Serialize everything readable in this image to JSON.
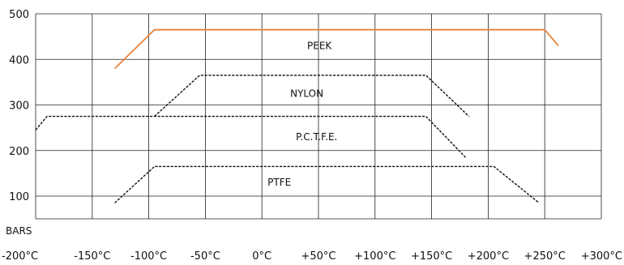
{
  "chart_data": {
    "type": "line",
    "title": "",
    "xlabel": "",
    "ylabel": "BARS",
    "xlim": [
      -200,
      300
    ],
    "ylim": [
      50,
      500
    ],
    "grid": true,
    "x_ticks": [
      -200,
      -150,
      -100,
      -50,
      0,
      50,
      100,
      150,
      200,
      250,
      300
    ],
    "x_tick_labels": [
      "-200°C",
      "-150°C",
      "-100°C",
      "-50°C",
      "0°C",
      "+50°C",
      "+100°C",
      "+150°C",
      "+200°C",
      "+250°C",
      "+300°C"
    ],
    "y_ticks": [
      100,
      200,
      300,
      400,
      500
    ],
    "y_tick_labels": [
      "100",
      "200",
      "300",
      "400",
      "500"
    ],
    "series": [
      {
        "name": "PEEK",
        "color": "#e8843c",
        "dash": "solid",
        "points": [
          [
            -130,
            380
          ],
          [
            -95,
            465
          ],
          [
            250,
            465
          ],
          [
            262,
            430
          ]
        ]
      },
      {
        "name": "NYLON",
        "color": "#111111",
        "dash": "dashed",
        "points": [
          [
            -95,
            275
          ],
          [
            -55,
            365
          ],
          [
            145,
            365
          ],
          [
            183,
            275
          ]
        ]
      },
      {
        "name": "P.C.T.F.E.",
        "color": "#111111",
        "dash": "dashed",
        "points": [
          [
            -200,
            245
          ],
          [
            -190,
            275
          ],
          [
            145,
            275
          ],
          [
            180,
            185
          ]
        ]
      },
      {
        "name": "PTFE",
        "color": "#111111",
        "dash": "dashed",
        "points": [
          [
            -130,
            85
          ],
          [
            -95,
            165
          ],
          [
            205,
            165
          ],
          [
            245,
            85
          ]
        ]
      }
    ],
    "series_label_positions": [
      {
        "name": "PEEK",
        "x": 40,
        "y": 430
      },
      {
        "name": "NYLON",
        "x": 25,
        "y": 325
      },
      {
        "name": "P.C.T.F.E.",
        "x": 30,
        "y": 230
      },
      {
        "name": "PTFE",
        "x": 5,
        "y": 130
      }
    ]
  }
}
